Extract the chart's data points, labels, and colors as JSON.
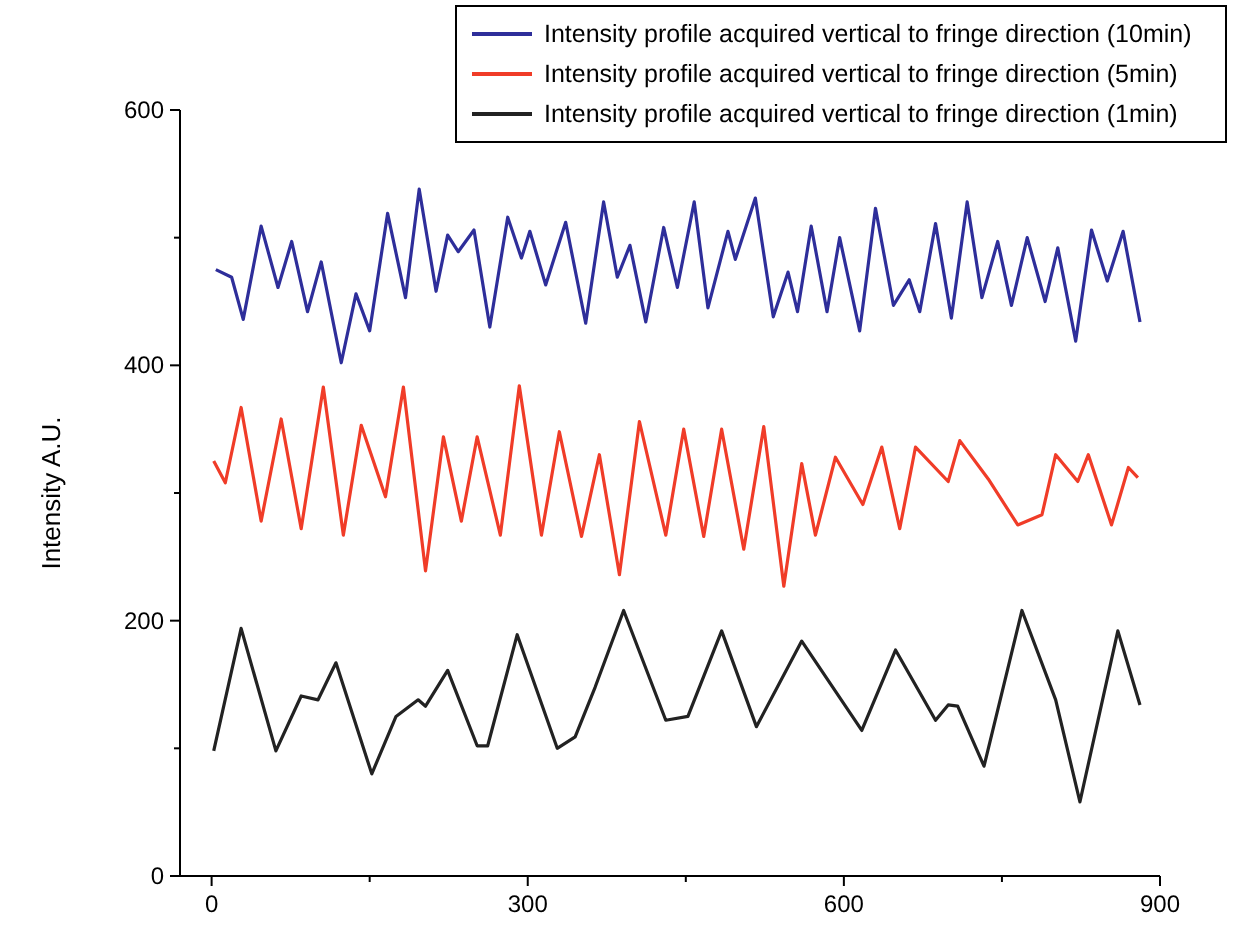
{
  "chart_data": {
    "type": "line",
    "ylabel": "Intensity A.U.",
    "xlim": [
      -30,
      900
    ],
    "ylim": [
      0,
      600
    ],
    "xticks": [
      0,
      {
        "value": 150,
        "label": null
      },
      300,
      {
        "value": 450,
        "label": null
      },
      600,
      {
        "value": 750,
        "label": null
      },
      900
    ],
    "yticks": [
      0,
      {
        "value": 100,
        "label": null
      },
      200,
      {
        "value": 300,
        "label": null
      },
      400,
      {
        "value": 500,
        "label": null
      },
      600
    ],
    "grid": false,
    "legend": "top right",
    "marker": "none",
    "line_style": "solid",
    "series": [
      {
        "name": "Intensity profile acquired vertical to fringe direction (10min)",
        "color": "#2e2e9a",
        "x": [
          4,
          19,
          30,
          47,
          63,
          76,
          91,
          104,
          123,
          137,
          150,
          167,
          184,
          197,
          213,
          224,
          234,
          249,
          264,
          281,
          294,
          302,
          317,
          336,
          355,
          372,
          385,
          397,
          412,
          429,
          442,
          458,
          471,
          490,
          497,
          516,
          533,
          547,
          556,
          569,
          584,
          596,
          615,
          630,
          647,
          662,
          672,
          687,
          702,
          717,
          731,
          746,
          759,
          774,
          791,
          803,
          820,
          835,
          850,
          865,
          881
        ],
        "values": [
          475,
          469,
          436,
          509,
          461,
          497,
          442,
          481,
          402,
          456,
          427,
          519,
          453,
          538,
          458,
          502,
          489,
          506,
          430,
          516,
          484,
          505,
          463,
          512,
          433,
          528,
          469,
          494,
          434,
          508,
          461,
          528,
          445,
          505,
          483,
          531,
          438,
          473,
          442,
          509,
          442,
          500,
          427,
          523,
          447,
          467,
          442,
          511,
          437,
          528,
          453,
          497,
          447,
          500,
          450,
          492,
          419,
          506,
          466,
          505,
          434
        ]
      },
      {
        "name": "Intensity profile acquired vertical to fringe direction (5min)",
        "color": "#f03c28",
        "x": [
          2,
          13,
          28,
          47,
          66,
          85,
          106,
          125,
          142,
          165,
          182,
          203,
          220,
          237,
          252,
          274,
          292,
          313,
          330,
          351,
          368,
          387,
          406,
          431,
          448,
          467,
          484,
          505,
          524,
          543,
          560,
          573,
          592,
          618,
          636,
          653,
          668,
          699,
          710,
          737,
          765,
          788,
          801,
          822,
          832,
          854,
          870,
          879
        ],
        "values": [
          325,
          308,
          367,
          278,
          358,
          272,
          383,
          267,
          353,
          297,
          383,
          239,
          344,
          278,
          344,
          267,
          384,
          267,
          348,
          266,
          330,
          236,
          356,
          267,
          350,
          266,
          350,
          256,
          352,
          227,
          323,
          267,
          328,
          291,
          336,
          272,
          336,
          309,
          341,
          311,
          275,
          283,
          330,
          309,
          330,
          275,
          320,
          312
        ]
      },
      {
        "name": "Intensity profile acquired vertical to fringe direction (1min)",
        "color": "#222222",
        "x": [
          2,
          28,
          61,
          85,
          101,
          118,
          152,
          175,
          196,
          203,
          224,
          252,
          262,
          290,
          328,
          345,
          364,
          391,
          431,
          452,
          484,
          517,
          560,
          617,
          649,
          687,
          699,
          708,
          733,
          769,
          801,
          824,
          860,
          881
        ],
        "values": [
          98,
          194,
          98,
          141,
          138,
          167,
          80,
          125,
          138,
          133,
          161,
          102,
          102,
          189,
          100,
          109,
          148,
          208,
          122,
          125,
          192,
          117,
          184,
          114,
          177,
          122,
          134,
          133,
          86,
          208,
          138,
          58,
          192,
          134
        ]
      }
    ]
  }
}
